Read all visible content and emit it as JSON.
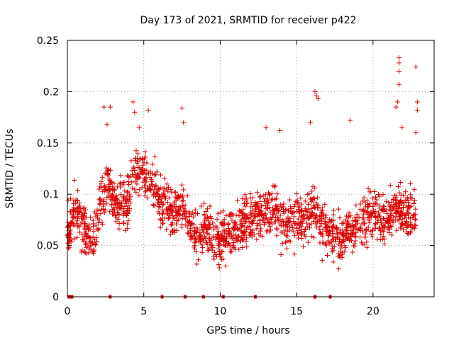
{
  "chart_data": {
    "type": "scatter",
    "title": "Day 173 of 2021, SRMTID for receiver p422",
    "xlabel": "GPS time / hours",
    "ylabel": "SRMTID / TECUs",
    "xlim": [
      0,
      24
    ],
    "ylim": [
      0,
      0.25
    ],
    "xticks": [
      0,
      5,
      10,
      15,
      20
    ],
    "xtick_labels": [
      "0",
      "5",
      "10",
      "15",
      "20"
    ],
    "yticks": [
      0,
      0.05,
      0.1,
      0.15,
      0.2,
      0.25
    ],
    "ytick_labels": [
      "0",
      "0.05",
      "0.1",
      "0.15",
      "0.2",
      "0.25"
    ],
    "grid": true,
    "marker": "+",
    "color": "#dd0000",
    "series": [
      {
        "name": "SRMTID",
        "segments": [
          {
            "x": 0.0,
            "y": 0.058
          },
          {
            "x": 0.5,
            "y": 0.085
          },
          {
            "x": 1.0,
            "y": 0.07
          },
          {
            "x": 1.3,
            "y": 0.055
          },
          {
            "x": 1.8,
            "y": 0.06
          },
          {
            "x": 2.2,
            "y": 0.095
          },
          {
            "x": 2.7,
            "y": 0.11
          },
          {
            "x": 3.2,
            "y": 0.085
          },
          {
            "x": 3.8,
            "y": 0.09
          },
          {
            "x": 4.5,
            "y": 0.125
          },
          {
            "x": 5.0,
            "y": 0.118
          },
          {
            "x": 5.5,
            "y": 0.11
          },
          {
            "x": 6.0,
            "y": 0.095
          },
          {
            "x": 6.5,
            "y": 0.085
          },
          {
            "x": 7.0,
            "y": 0.08
          },
          {
            "x": 7.5,
            "y": 0.09
          },
          {
            "x": 8.0,
            "y": 0.07
          },
          {
            "x": 8.5,
            "y": 0.06
          },
          {
            "x": 9.0,
            "y": 0.07
          },
          {
            "x": 9.5,
            "y": 0.055
          },
          {
            "x": 10.0,
            "y": 0.055
          },
          {
            "x": 10.5,
            "y": 0.06
          },
          {
            "x": 11.0,
            "y": 0.065
          },
          {
            "x": 11.5,
            "y": 0.07
          },
          {
            "x": 12.0,
            "y": 0.075
          },
          {
            "x": 12.5,
            "y": 0.08
          },
          {
            "x": 13.0,
            "y": 0.078
          },
          {
            "x": 13.5,
            "y": 0.085
          },
          {
            "x": 14.0,
            "y": 0.075
          },
          {
            "x": 14.5,
            "y": 0.07
          },
          {
            "x": 15.0,
            "y": 0.08
          },
          {
            "x": 15.5,
            "y": 0.075
          },
          {
            "x": 16.0,
            "y": 0.085
          },
          {
            "x": 16.5,
            "y": 0.075
          },
          {
            "x": 17.0,
            "y": 0.065
          },
          {
            "x": 17.5,
            "y": 0.06
          },
          {
            "x": 18.0,
            "y": 0.06
          },
          {
            "x": 18.5,
            "y": 0.068
          },
          {
            "x": 19.0,
            "y": 0.07
          },
          {
            "x": 19.5,
            "y": 0.075
          },
          {
            "x": 20.0,
            "y": 0.08
          },
          {
            "x": 20.5,
            "y": 0.075
          },
          {
            "x": 21.0,
            "y": 0.078
          },
          {
            "x": 21.5,
            "y": 0.09
          },
          {
            "x": 22.0,
            "y": 0.085
          },
          {
            "x": 22.5,
            "y": 0.08
          },
          {
            "x": 22.8,
            "y": 0.075
          }
        ],
        "spread": 0.03,
        "x_range": [
          0.0,
          22.8
        ],
        "point_count": 1800
      }
    ],
    "outliers": [
      {
        "x": 2.4,
        "y": 0.185
      },
      {
        "x": 2.8,
        "y": 0.185
      },
      {
        "x": 4.3,
        "y": 0.19
      },
      {
        "x": 4.4,
        "y": 0.18
      },
      {
        "x": 5.3,
        "y": 0.182
      },
      {
        "x": 7.5,
        "y": 0.184
      },
      {
        "x": 7.6,
        "y": 0.17
      },
      {
        "x": 13.0,
        "y": 0.165
      },
      {
        "x": 16.2,
        "y": 0.2
      },
      {
        "x": 16.3,
        "y": 0.196
      },
      {
        "x": 16.4,
        "y": 0.193
      },
      {
        "x": 15.9,
        "y": 0.17
      },
      {
        "x": 18.5,
        "y": 0.172
      },
      {
        "x": 21.7,
        "y": 0.233
      },
      {
        "x": 21.7,
        "y": 0.228
      },
      {
        "x": 21.7,
        "y": 0.22
      },
      {
        "x": 21.7,
        "y": 0.207
      },
      {
        "x": 21.6,
        "y": 0.19
      },
      {
        "x": 21.5,
        "y": 0.185
      },
      {
        "x": 22.8,
        "y": 0.224
      },
      {
        "x": 22.9,
        "y": 0.19
      },
      {
        "x": 22.9,
        "y": 0.182
      },
      {
        "x": 22.8,
        "y": 0.16
      },
      {
        "x": 21.9,
        "y": 0.165
      },
      {
        "x": 2.6,
        "y": 0.168
      },
      {
        "x": 4.7,
        "y": 0.165
      },
      {
        "x": 13.9,
        "y": 0.162
      }
    ],
    "zero_markers_x": [
      0.1,
      0.2,
      0.3,
      2.8,
      6.2,
      7.7,
      8.9,
      10.2,
      12.3,
      16.2,
      17.2
    ]
  }
}
